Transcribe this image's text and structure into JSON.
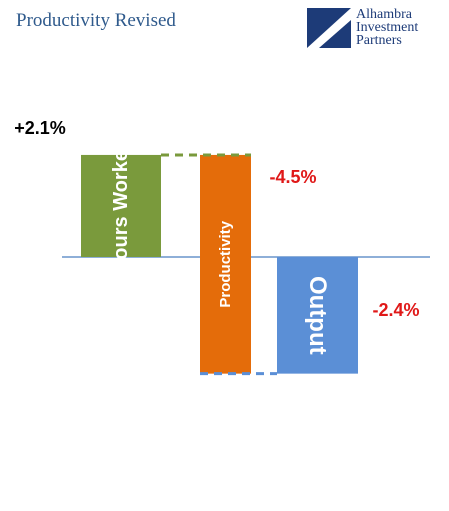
{
  "title": "Productivity Revised",
  "logo": {
    "line1": "Alhambra",
    "line2": "Investment",
    "line3": "Partners"
  },
  "colors": {
    "hours_worked": "#7a9a3c",
    "productivity": "#e46c0a",
    "output": "#5b8fd6",
    "negative_label": "#e01818",
    "positive_label": "#000000",
    "axis": "#4a7fc0"
  },
  "chart_data": {
    "type": "bar",
    "title": "Productivity Revised",
    "ylim": [
      -4.5,
      2.1
    ],
    "bars": [
      {
        "label": "Hours Worked",
        "base": 0,
        "value": 2.1,
        "data_label": "+2.1%"
      },
      {
        "label": "Productivity",
        "base": 2.1,
        "value": -4.5,
        "data_label": "-4.5%"
      },
      {
        "label": "Output",
        "base": 0,
        "value": -2.4,
        "data_label": "-2.4%"
      }
    ]
  }
}
